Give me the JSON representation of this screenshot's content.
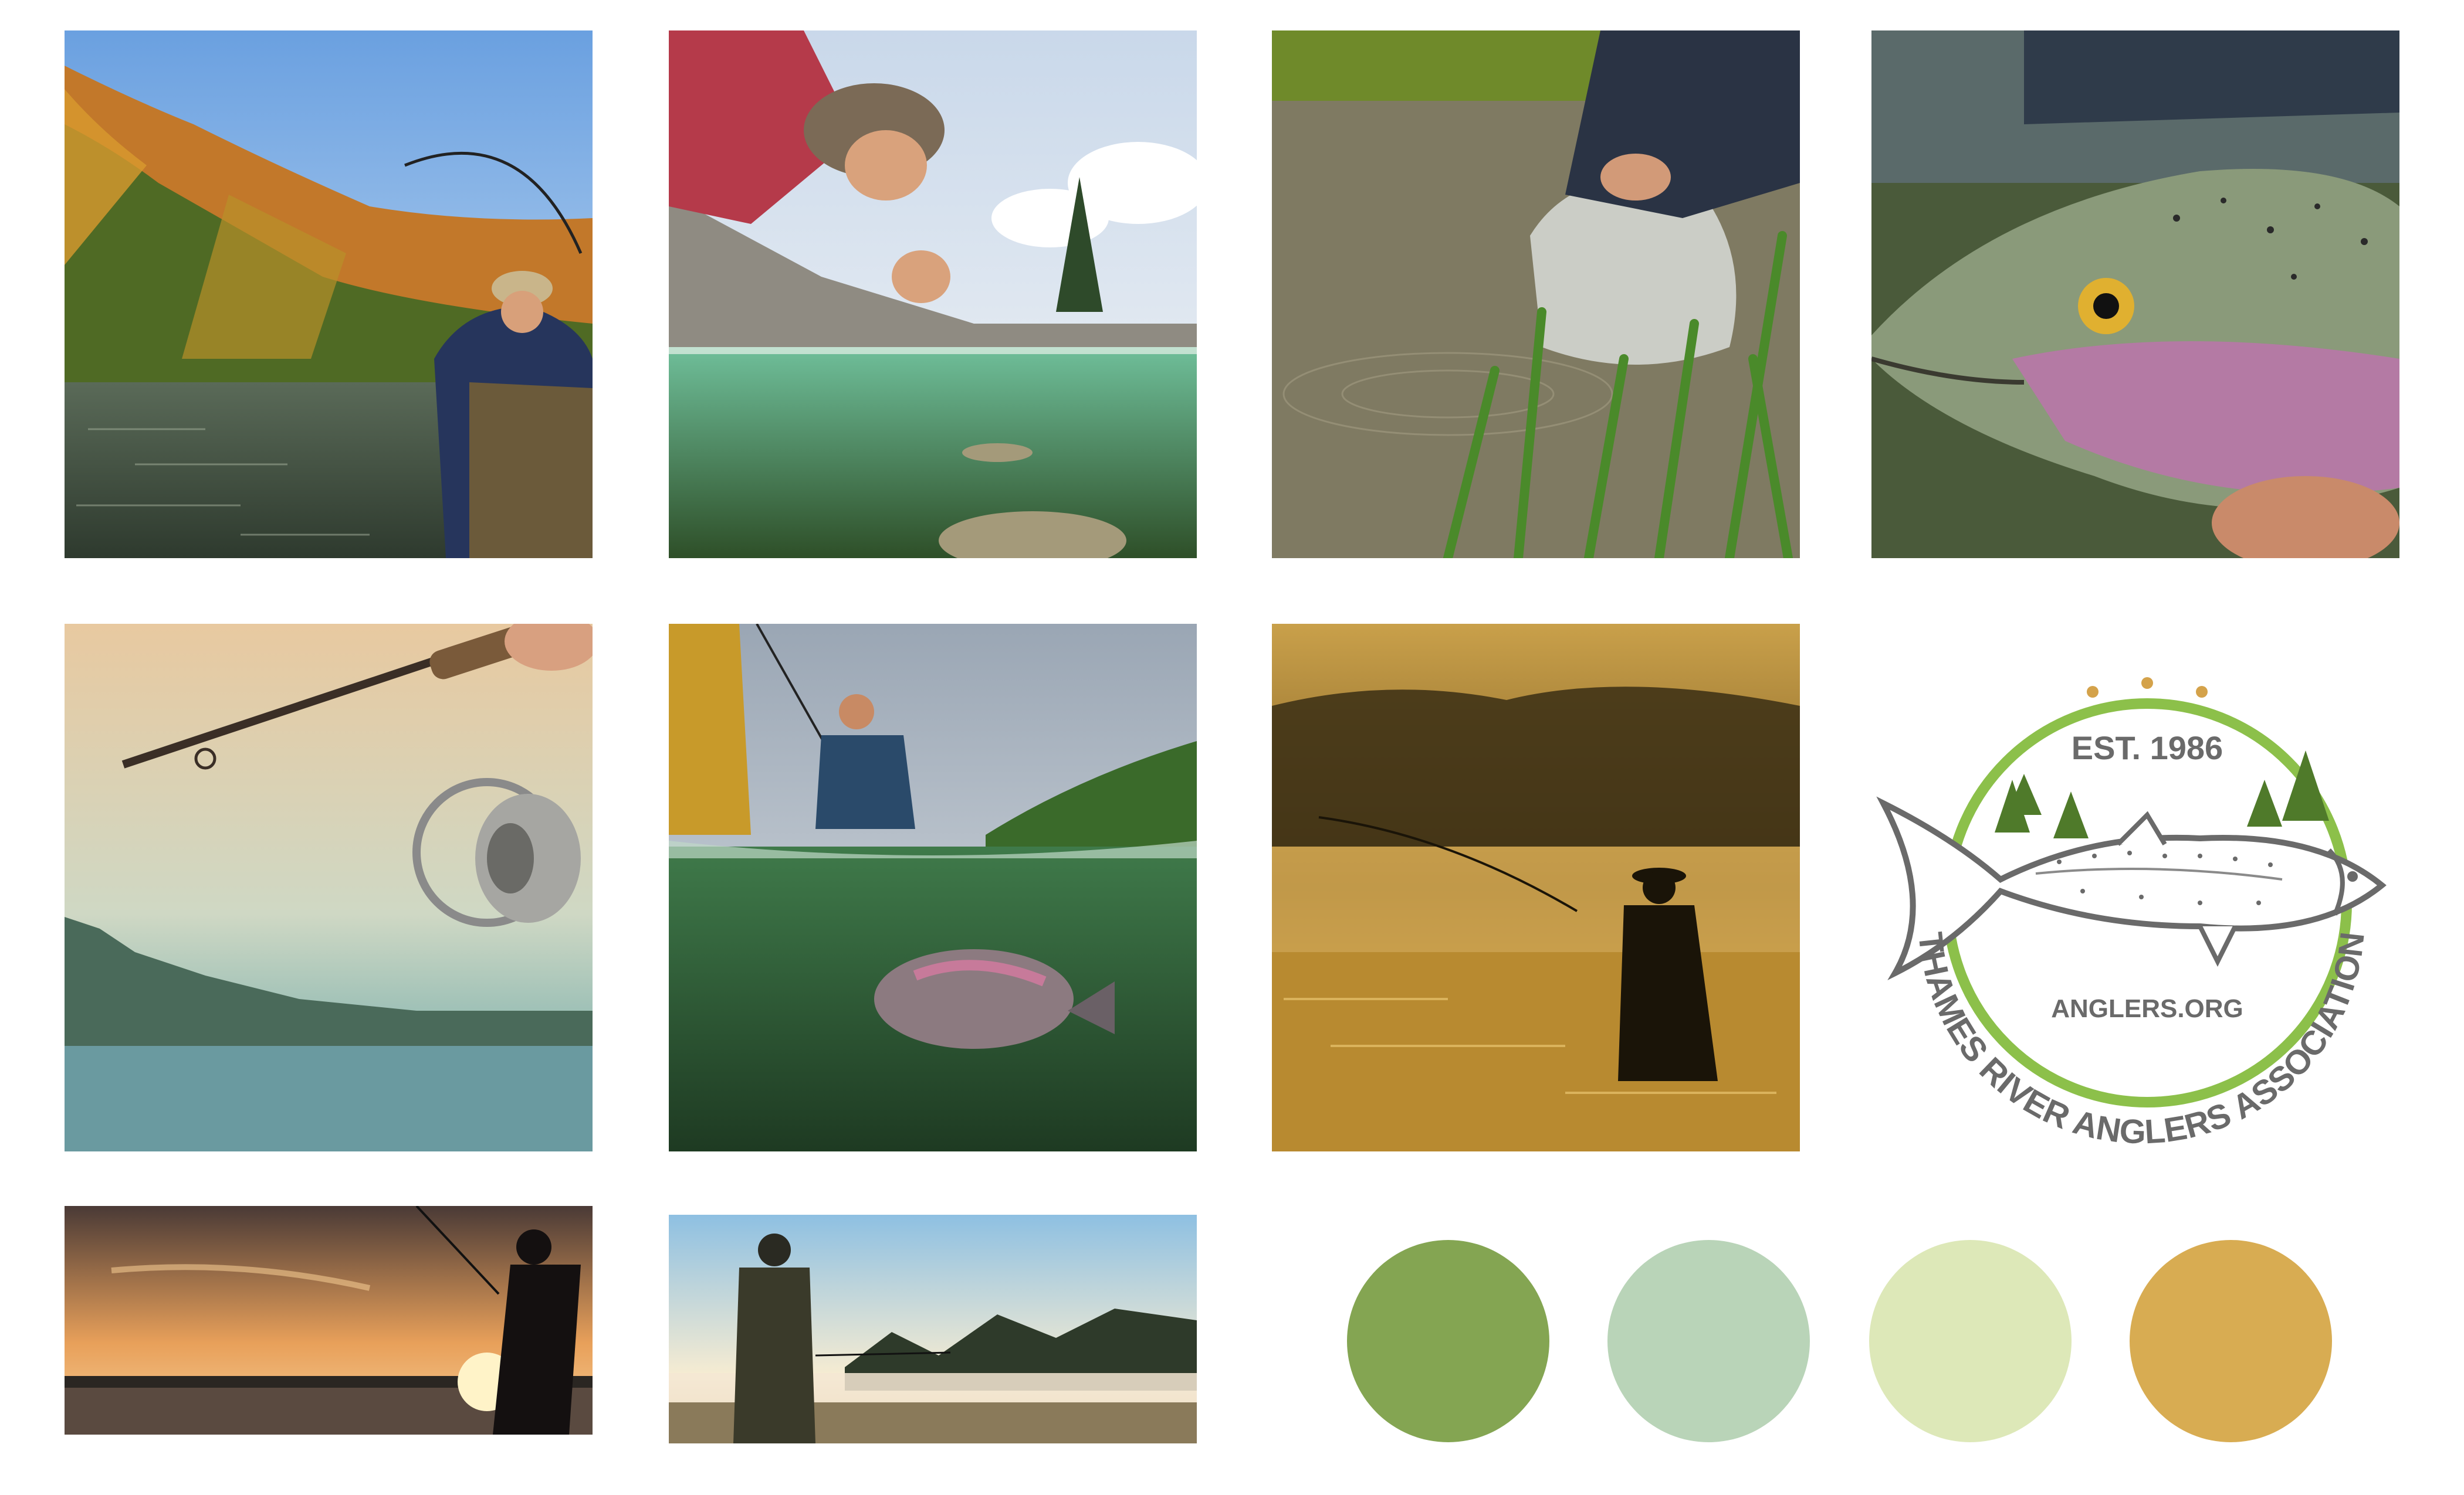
{
  "logo": {
    "established": "EST. 1986",
    "website": "ANGLERS.ORG",
    "name": "THAMES RIVER ANGLERS ASSOCIATION",
    "ring_color": "#8cc04a",
    "tree_color": "#4f7a2a",
    "dot_color": "#d4a24a",
    "text_color": "#6a6a6a"
  },
  "palette": [
    {
      "name": "moss-green",
      "hex": "#84a552"
    },
    {
      "name": "sage-mint",
      "hex": "#b9d4b8"
    },
    {
      "name": "pale-lime",
      "hex": "#dde8b8"
    },
    {
      "name": "golden-ochre",
      "hex": "#d8ac52"
    }
  ],
  "photos": [
    {
      "id": "autumn-river-angler",
      "subject": "Angler casting in an autumn river"
    },
    {
      "id": "kids-at-dock",
      "subject": "Children leaning over a dock above clear water with fish"
    },
    {
      "id": "fish-release-bag",
      "subject": "Person releasing fish from a plastic bag into reeds"
    },
    {
      "id": "trout-closeup",
      "subject": "Close-up of a rainbow trout held in hands"
    },
    {
      "id": "rod-and-reel",
      "subject": "Spinning reel and rod against a sunset lake"
    },
    {
      "id": "split-underwater",
      "subject": "Split view of angler above and trout below water"
    },
    {
      "id": "golden-fog-wader",
      "subject": "Silhouetted angler wading in golden misty river"
    },
    {
      "id": "sunset-silhouette",
      "subject": "Silhouetted angler at sunset"
    },
    {
      "id": "misty-morning-angler",
      "subject": "Angler on misty lake shore at dawn"
    }
  ]
}
